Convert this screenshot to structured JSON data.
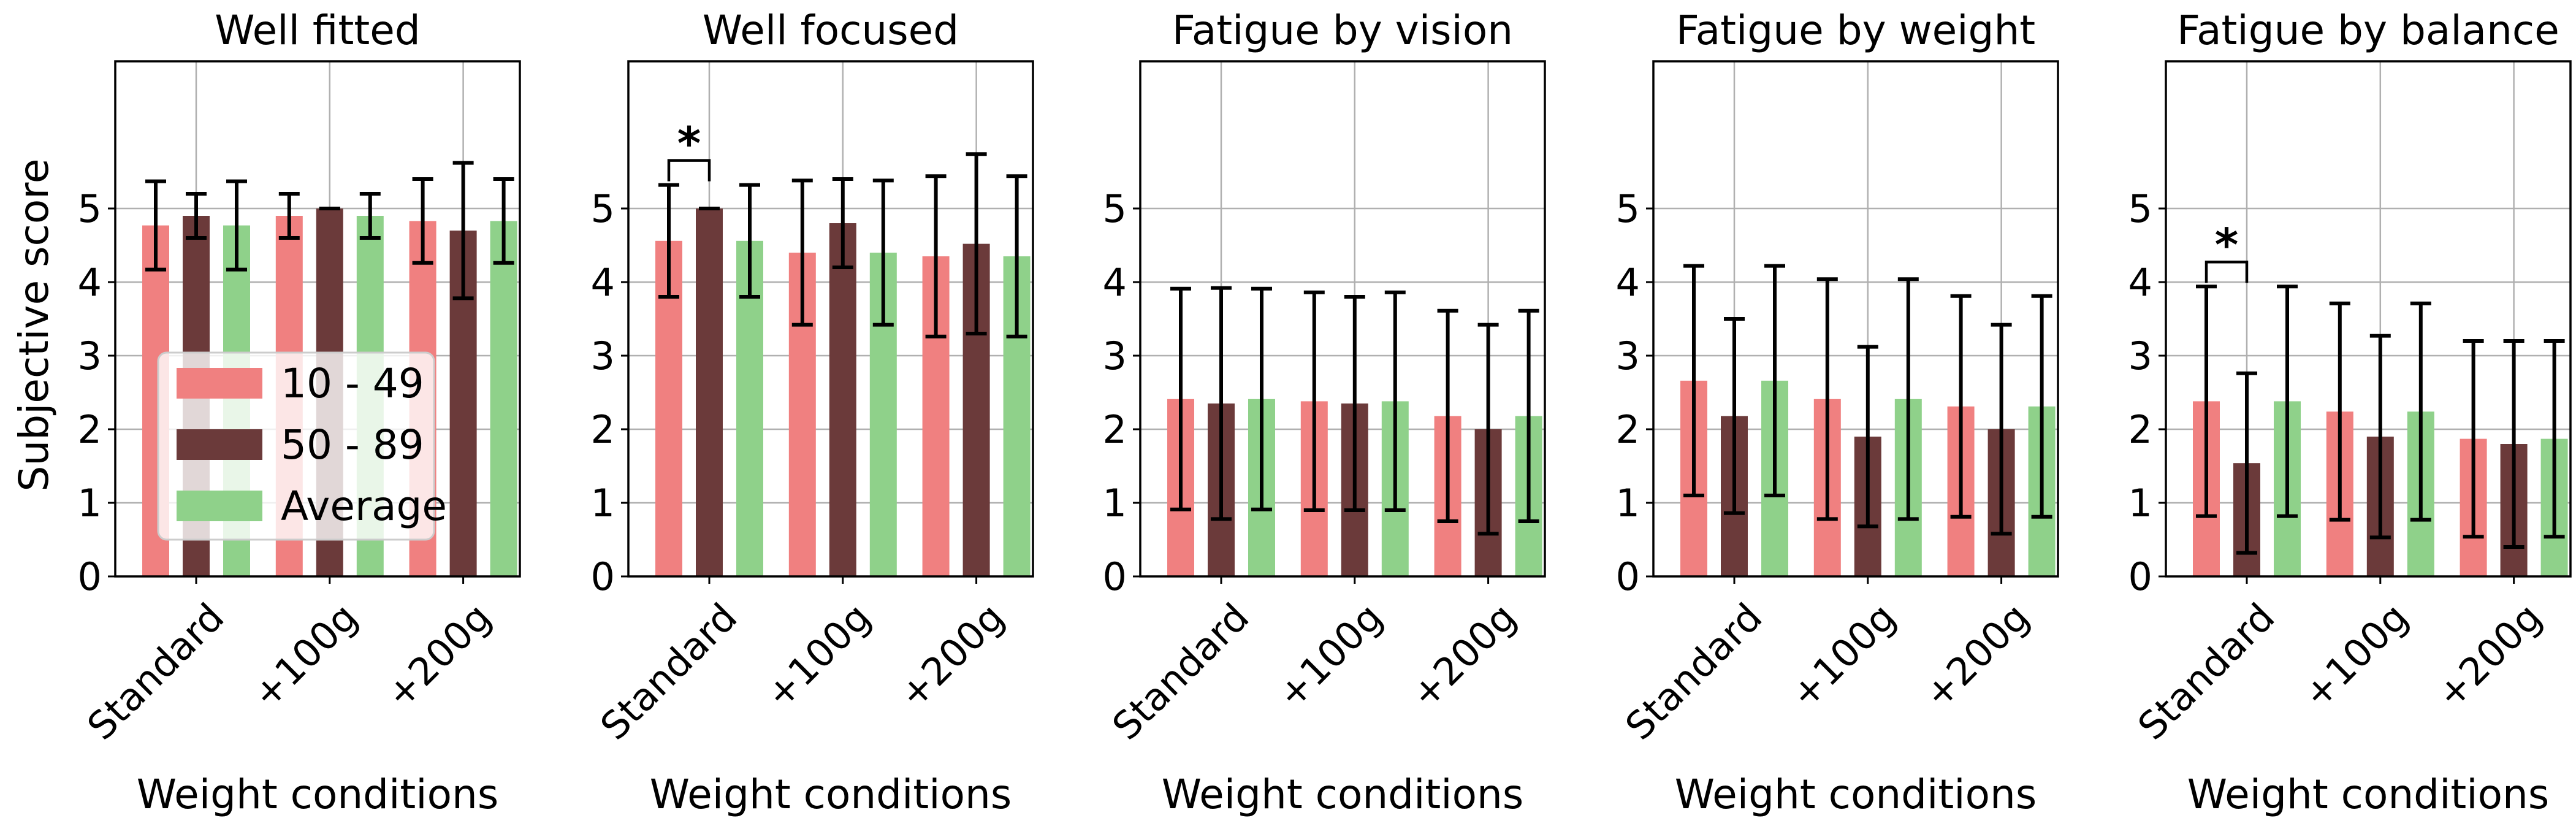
{
  "chart_data": {
    "type": "bar",
    "ylabel": "Subjective score",
    "xlabel": "Weight conditions",
    "categories": [
      "Standard",
      "+100g",
      "+200g"
    ],
    "yticks": [
      0,
      1,
      2,
      3,
      4,
      5
    ],
    "ylim": [
      0,
      7
    ],
    "grid": true,
    "legend": {
      "panel": 0,
      "placement": "lower-left",
      "entries": [
        "10 - 49",
        "50 - 89",
        "Average"
      ]
    },
    "colors": {
      "10 - 49": "#f08080",
      "50 - 89": "#6b3a3a",
      "Average": "#8fd18a"
    },
    "panels": [
      {
        "title": "Well fitted",
        "series": [
          {
            "name": "10 - 49",
            "values": [
              4.77,
              4.9,
              4.83
            ],
            "errors": [
              0.6,
              0.3,
              0.57
            ]
          },
          {
            "name": "50 - 89",
            "values": [
              4.9,
              5.0,
              4.7
            ],
            "errors": [
              0.3,
              0.0,
              0.92
            ]
          },
          {
            "name": "Average",
            "values": [
              4.77,
              4.9,
              4.83
            ],
            "errors": [
              0.6,
              0.3,
              0.57
            ]
          }
        ],
        "significance": []
      },
      {
        "title": "Well focused",
        "series": [
          {
            "name": "10 - 49",
            "values": [
              4.56,
              4.4,
              4.35
            ],
            "errors": [
              0.76,
              0.98,
              1.09
            ]
          },
          {
            "name": "50 - 89",
            "values": [
              5.0,
              4.8,
              4.52
            ],
            "errors": [
              0.0,
              0.6,
              1.22
            ]
          },
          {
            "name": "Average",
            "values": [
              4.56,
              4.4,
              4.35
            ],
            "errors": [
              0.76,
              0.98,
              1.09
            ]
          }
        ],
        "significance": [
          {
            "category": 0,
            "between": [
              "10 - 49",
              "50 - 89"
            ],
            "label": "*"
          }
        ]
      },
      {
        "title": "Fatigue by vision",
        "series": [
          {
            "name": "10 - 49",
            "values": [
              2.41,
              2.38,
              2.18
            ],
            "errors": [
              1.5,
              1.48,
              1.43
            ]
          },
          {
            "name": "50 - 89",
            "values": [
              2.35,
              2.35,
              2.0
            ],
            "errors": [
              1.57,
              1.45,
              1.42
            ]
          },
          {
            "name": "Average",
            "values": [
              2.41,
              2.38,
              2.18
            ],
            "errors": [
              1.5,
              1.48,
              1.43
            ]
          }
        ],
        "significance": []
      },
      {
        "title": "Fatigue by weight",
        "series": [
          {
            "name": "10 - 49",
            "values": [
              2.66,
              2.41,
              2.31
            ],
            "errors": [
              1.56,
              1.63,
              1.5
            ]
          },
          {
            "name": "50 - 89",
            "values": [
              2.18,
              1.9,
              2.0
            ],
            "errors": [
              1.32,
              1.22,
              1.42
            ]
          },
          {
            "name": "Average",
            "values": [
              2.66,
              2.41,
              2.31
            ],
            "errors": [
              1.56,
              1.63,
              1.5
            ]
          }
        ],
        "significance": []
      },
      {
        "title": "Fatigue by balance",
        "series": [
          {
            "name": "10 - 49",
            "values": [
              2.38,
              2.24,
              1.87
            ],
            "errors": [
              1.56,
              1.47,
              1.33
            ]
          },
          {
            "name": "50 - 89",
            "values": [
              1.54,
              1.9,
              1.8
            ],
            "errors": [
              1.22,
              1.37,
              1.4
            ]
          },
          {
            "name": "Average",
            "values": [
              2.38,
              2.24,
              1.87
            ],
            "errors": [
              1.56,
              1.47,
              1.33
            ]
          }
        ],
        "significance": [
          {
            "category": 0,
            "between": [
              "10 - 49",
              "50 - 89"
            ],
            "label": "*"
          }
        ]
      }
    ]
  }
}
